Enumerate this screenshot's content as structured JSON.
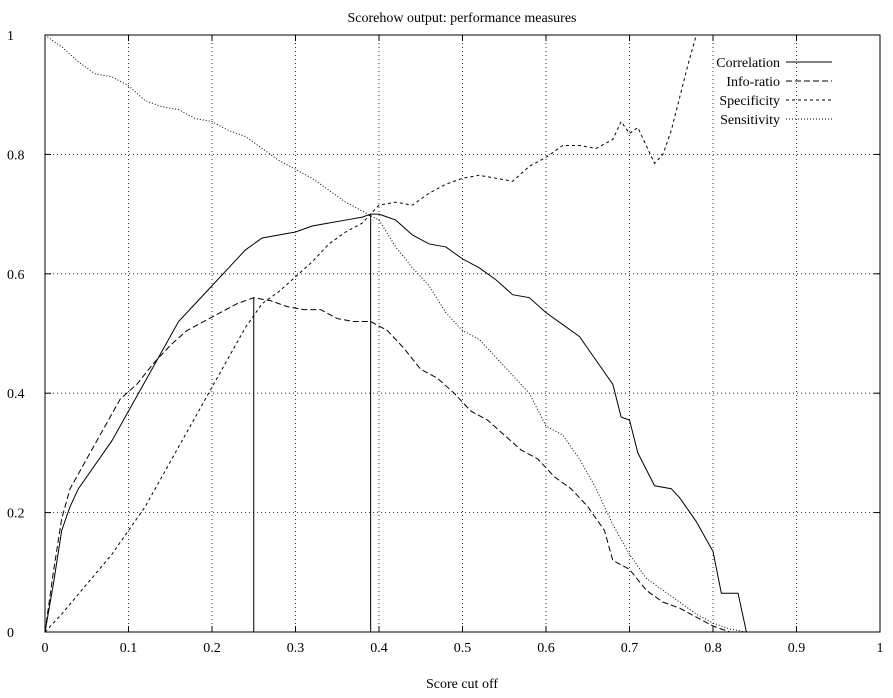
{
  "chart_data": {
    "type": "line",
    "title": "Scorehow output: performance measures",
    "xlabel": "Score cut off",
    "ylabel": "",
    "xlim": [
      0,
      1
    ],
    "ylim": [
      0,
      1
    ],
    "grid": true,
    "legend_position": "top-right",
    "x_ticks": [
      {
        "value": 0,
        "label": "0"
      },
      {
        "value": 0.1,
        "label": "0.1"
      },
      {
        "value": 0.2,
        "label": "0.2"
      },
      {
        "value": 0.3,
        "label": "0.3"
      },
      {
        "value": 0.4,
        "label": "0.4"
      },
      {
        "value": 0.5,
        "label": "0.5"
      },
      {
        "value": 0.6,
        "label": "0.6"
      },
      {
        "value": 0.7,
        "label": "0.7"
      },
      {
        "value": 0.8,
        "label": "0.8"
      },
      {
        "value": 0.9,
        "label": "0.9"
      },
      {
        "value": 1,
        "label": "1"
      }
    ],
    "y_ticks": [
      {
        "value": 0,
        "label": "0"
      },
      {
        "value": 0.2,
        "label": "0.2"
      },
      {
        "value": 0.4,
        "label": "0.4"
      },
      {
        "value": 0.6,
        "label": "0.6"
      },
      {
        "value": 0.8,
        "label": "0.8"
      },
      {
        "value": 1,
        "label": "1"
      }
    ],
    "series": [
      {
        "name": "Correlation",
        "style": "solid",
        "points": [
          [
            0,
            0
          ],
          [
            0.01,
            0.08
          ],
          [
            0.02,
            0.17
          ],
          [
            0.03,
            0.21
          ],
          [
            0.04,
            0.24
          ],
          [
            0.06,
            0.28
          ],
          [
            0.08,
            0.32
          ],
          [
            0.1,
            0.37
          ],
          [
            0.12,
            0.42
          ],
          [
            0.14,
            0.47
          ],
          [
            0.16,
            0.52
          ],
          [
            0.18,
            0.55
          ],
          [
            0.2,
            0.58
          ],
          [
            0.22,
            0.61
          ],
          [
            0.24,
            0.64
          ],
          [
            0.26,
            0.66
          ],
          [
            0.28,
            0.665
          ],
          [
            0.3,
            0.67
          ],
          [
            0.32,
            0.68
          ],
          [
            0.34,
            0.685
          ],
          [
            0.36,
            0.69
          ],
          [
            0.38,
            0.695
          ],
          [
            0.39,
            0.7
          ],
          [
            0.4,
            0.7
          ],
          [
            0.42,
            0.69
          ],
          [
            0.44,
            0.665
          ],
          [
            0.46,
            0.65
          ],
          [
            0.48,
            0.645
          ],
          [
            0.5,
            0.625
          ],
          [
            0.52,
            0.61
          ],
          [
            0.54,
            0.59
          ],
          [
            0.56,
            0.565
          ],
          [
            0.58,
            0.56
          ],
          [
            0.6,
            0.535
          ],
          [
            0.62,
            0.515
          ],
          [
            0.64,
            0.495
          ],
          [
            0.66,
            0.455
          ],
          [
            0.68,
            0.415
          ],
          [
            0.69,
            0.36
          ],
          [
            0.7,
            0.355
          ],
          [
            0.71,
            0.3
          ],
          [
            0.73,
            0.245
          ],
          [
            0.75,
            0.24
          ],
          [
            0.76,
            0.225
          ],
          [
            0.78,
            0.185
          ],
          [
            0.79,
            0.16
          ],
          [
            0.8,
            0.135
          ],
          [
            0.81,
            0.065
          ],
          [
            0.83,
            0.065
          ],
          [
            0.84,
            0
          ],
          [
            1,
            0
          ]
        ]
      },
      {
        "name": "Info-ratio",
        "style": "dashed",
        "points": [
          [
            0,
            0
          ],
          [
            0.01,
            0.1
          ],
          [
            0.02,
            0.19
          ],
          [
            0.03,
            0.24
          ],
          [
            0.05,
            0.29
          ],
          [
            0.07,
            0.34
          ],
          [
            0.09,
            0.39
          ],
          [
            0.11,
            0.415
          ],
          [
            0.13,
            0.45
          ],
          [
            0.15,
            0.48
          ],
          [
            0.17,
            0.505
          ],
          [
            0.19,
            0.52
          ],
          [
            0.21,
            0.535
          ],
          [
            0.23,
            0.55
          ],
          [
            0.25,
            0.56
          ],
          [
            0.27,
            0.555
          ],
          [
            0.29,
            0.545
          ],
          [
            0.31,
            0.54
          ],
          [
            0.33,
            0.54
          ],
          [
            0.35,
            0.525
          ],
          [
            0.37,
            0.52
          ],
          [
            0.39,
            0.52
          ],
          [
            0.41,
            0.505
          ],
          [
            0.43,
            0.475
          ],
          [
            0.45,
            0.44
          ],
          [
            0.47,
            0.425
          ],
          [
            0.49,
            0.4
          ],
          [
            0.51,
            0.37
          ],
          [
            0.53,
            0.355
          ],
          [
            0.55,
            0.33
          ],
          [
            0.57,
            0.305
          ],
          [
            0.59,
            0.29
          ],
          [
            0.61,
            0.26
          ],
          [
            0.63,
            0.24
          ],
          [
            0.65,
            0.21
          ],
          [
            0.67,
            0.17
          ],
          [
            0.68,
            0.12
          ],
          [
            0.7,
            0.105
          ],
          [
            0.72,
            0.07
          ],
          [
            0.74,
            0.05
          ],
          [
            0.76,
            0.04
          ],
          [
            0.78,
            0.025
          ],
          [
            0.8,
            0.01
          ],
          [
            0.82,
            0
          ],
          [
            1,
            0
          ]
        ]
      },
      {
        "name": "Specificity",
        "style": "short-dashed",
        "points": [
          [
            0,
            0
          ],
          [
            0.02,
            0.03
          ],
          [
            0.05,
            0.08
          ],
          [
            0.08,
            0.13
          ],
          [
            0.1,
            0.17
          ],
          [
            0.12,
            0.21
          ],
          [
            0.14,
            0.26
          ],
          [
            0.16,
            0.31
          ],
          [
            0.18,
            0.36
          ],
          [
            0.2,
            0.41
          ],
          [
            0.22,
            0.46
          ],
          [
            0.24,
            0.51
          ],
          [
            0.26,
            0.55
          ],
          [
            0.28,
            0.57
          ],
          [
            0.3,
            0.595
          ],
          [
            0.32,
            0.62
          ],
          [
            0.34,
            0.65
          ],
          [
            0.36,
            0.67
          ],
          [
            0.38,
            0.685
          ],
          [
            0.4,
            0.715
          ],
          [
            0.42,
            0.72
          ],
          [
            0.44,
            0.715
          ],
          [
            0.46,
            0.735
          ],
          [
            0.48,
            0.75
          ],
          [
            0.5,
            0.76
          ],
          [
            0.52,
            0.765
          ],
          [
            0.54,
            0.76
          ],
          [
            0.56,
            0.755
          ],
          [
            0.58,
            0.78
          ],
          [
            0.6,
            0.795
          ],
          [
            0.62,
            0.815
          ],
          [
            0.64,
            0.815
          ],
          [
            0.66,
            0.81
          ],
          [
            0.68,
            0.825
          ],
          [
            0.69,
            0.855
          ],
          [
            0.7,
            0.835
          ],
          [
            0.71,
            0.845
          ],
          [
            0.72,
            0.815
          ],
          [
            0.73,
            0.785
          ],
          [
            0.74,
            0.8
          ],
          [
            0.75,
            0.84
          ],
          [
            0.76,
            0.895
          ],
          [
            0.77,
            0.95
          ],
          [
            0.78,
            1.0
          ]
        ]
      },
      {
        "name": "Sensitivity",
        "style": "dotted",
        "points": [
          [
            0,
            1.0
          ],
          [
            0.02,
            0.98
          ],
          [
            0.04,
            0.955
          ],
          [
            0.06,
            0.935
          ],
          [
            0.08,
            0.93
          ],
          [
            0.1,
            0.915
          ],
          [
            0.12,
            0.89
          ],
          [
            0.14,
            0.88
          ],
          [
            0.16,
            0.875
          ],
          [
            0.18,
            0.86
          ],
          [
            0.2,
            0.855
          ],
          [
            0.22,
            0.84
          ],
          [
            0.24,
            0.83
          ],
          [
            0.26,
            0.81
          ],
          [
            0.28,
            0.79
          ],
          [
            0.3,
            0.775
          ],
          [
            0.32,
            0.76
          ],
          [
            0.34,
            0.74
          ],
          [
            0.36,
            0.72
          ],
          [
            0.38,
            0.705
          ],
          [
            0.4,
            0.69
          ],
          [
            0.42,
            0.645
          ],
          [
            0.44,
            0.61
          ],
          [
            0.46,
            0.58
          ],
          [
            0.48,
            0.535
          ],
          [
            0.5,
            0.505
          ],
          [
            0.52,
            0.49
          ],
          [
            0.54,
            0.46
          ],
          [
            0.56,
            0.43
          ],
          [
            0.58,
            0.4
          ],
          [
            0.6,
            0.345
          ],
          [
            0.62,
            0.33
          ],
          [
            0.64,
            0.29
          ],
          [
            0.66,
            0.24
          ],
          [
            0.68,
            0.18
          ],
          [
            0.7,
            0.13
          ],
          [
            0.72,
            0.09
          ],
          [
            0.74,
            0.07
          ],
          [
            0.76,
            0.05
          ],
          [
            0.78,
            0.03
          ],
          [
            0.8,
            0.015
          ],
          [
            0.82,
            0.005
          ],
          [
            0.84,
            0
          ],
          [
            1,
            0
          ]
        ]
      }
    ],
    "markers": [
      {
        "x": 0.25,
        "y": 0.56
      },
      {
        "x": 0.39,
        "y": 0.7
      }
    ]
  }
}
